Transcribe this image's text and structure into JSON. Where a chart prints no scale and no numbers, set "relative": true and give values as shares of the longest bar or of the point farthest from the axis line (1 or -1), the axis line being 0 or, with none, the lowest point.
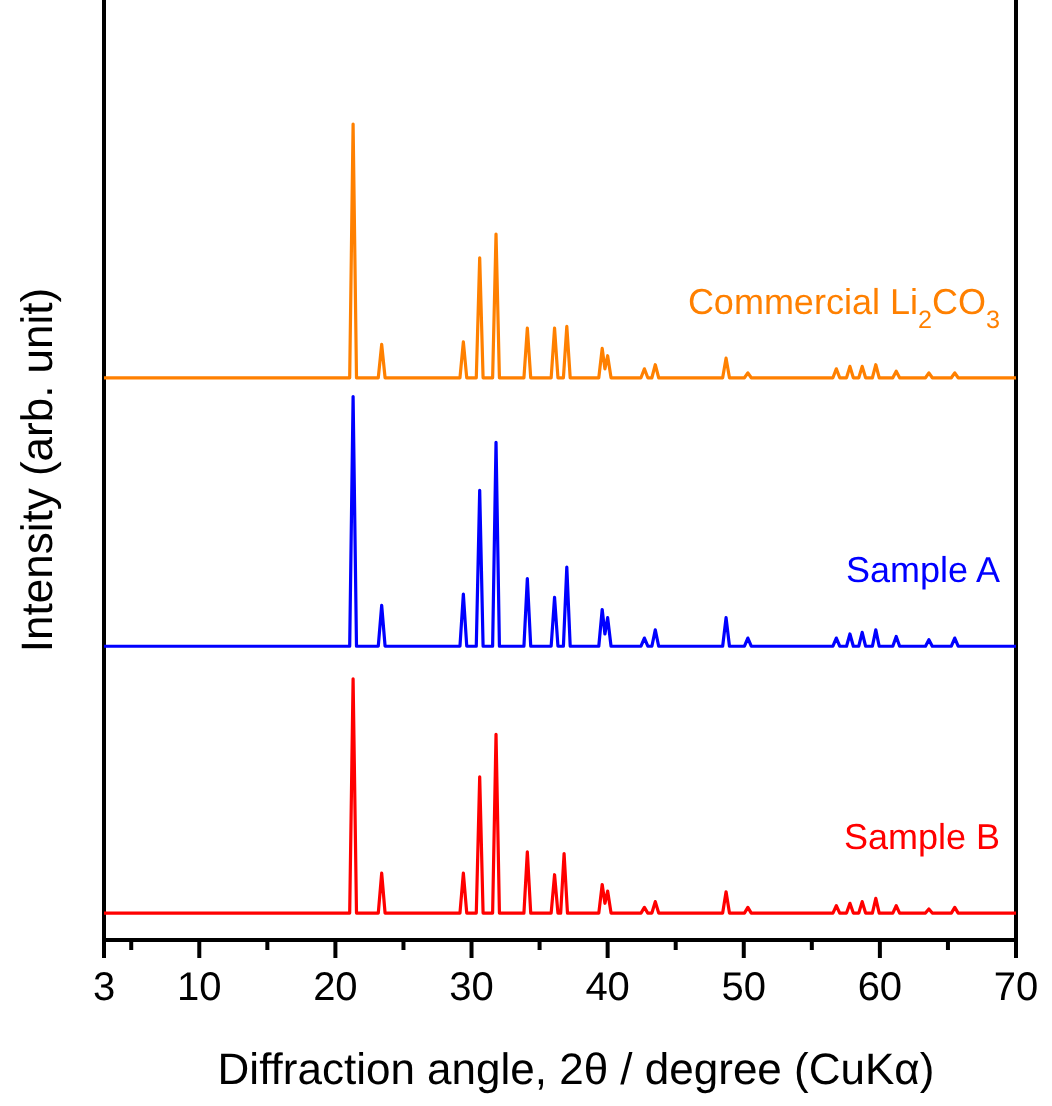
{
  "chart_data": {
    "type": "line",
    "relative": true,
    "xlabel": "Diffraction angle, 2θ / degree (CuKα)",
    "ylabel": "Intensity (arb. unit)",
    "xlim": [
      3,
      70
    ],
    "xticks": [
      3,
      {
        "value": 5,
        "label": null
      },
      10,
      {
        "value": 15,
        "label": null
      },
      20,
      {
        "value": 25,
        "label": null
      },
      30,
      {
        "value": 35,
        "label": null
      },
      40,
      {
        "value": 45,
        "label": null
      },
      50,
      {
        "value": 55,
        "label": null
      },
      60,
      {
        "value": 65,
        "label": null
      },
      70
    ],
    "tick_labels": "x",
    "marker": "none",
    "line_style": "solid",
    "series": [
      {
        "name": "Commercial Li$_{2}$CO$_{3}$",
        "color": "#ff8000",
        "x": [
          3,
          21.05,
          21.3,
          21.55,
          23.15,
          23.4,
          23.65,
          29.15,
          29.4,
          29.65,
          30.35,
          30.6,
          30.85,
          31.55,
          31.8,
          32.05,
          33.85,
          34.1,
          34.35,
          35.85,
          36.1,
          36.35,
          36.75,
          37.0,
          37.25,
          39.35,
          39.6,
          39.8,
          40.0,
          40.25,
          42.45,
          42.7,
          42.95,
          43.25,
          43.5,
          43.75,
          48.45,
          48.7,
          48.95,
          50.05,
          50.3,
          50.55,
          56.55,
          56.8,
          57.05,
          57.55,
          57.8,
          58.05,
          58.45,
          58.7,
          58.95,
          59.45,
          59.7,
          59.95,
          60.95,
          61.2,
          61.45,
          63.35,
          63.6,
          63.85,
          65.25,
          65.5,
          65.75,
          70
        ],
        "values": [
          0.689,
          0.689,
          1.0,
          0.689,
          0.689,
          0.73,
          0.689,
          0.689,
          0.733,
          0.689,
          0.689,
          0.836,
          0.689,
          0.689,
          0.865,
          0.689,
          0.689,
          0.75,
          0.689,
          0.689,
          0.75,
          0.689,
          0.689,
          0.752,
          0.689,
          0.689,
          0.725,
          0.7,
          0.716,
          0.689,
          0.689,
          0.7,
          0.689,
          0.689,
          0.705,
          0.689,
          0.689,
          0.713,
          0.689,
          0.689,
          0.695,
          0.689,
          0.689,
          0.7,
          0.689,
          0.689,
          0.703,
          0.689,
          0.689,
          0.703,
          0.689,
          0.689,
          0.705,
          0.689,
          0.689,
          0.697,
          0.689,
          0.689,
          0.695,
          0.689,
          0.689,
          0.695,
          0.689,
          0.689
        ]
      },
      {
        "name": "Sample A",
        "color": "#0000ff",
        "x": [
          3,
          21.05,
          21.3,
          21.55,
          23.15,
          23.4,
          23.65,
          29.15,
          29.4,
          29.65,
          30.35,
          30.6,
          30.85,
          31.55,
          31.8,
          32.05,
          33.85,
          34.1,
          34.35,
          35.85,
          36.1,
          36.35,
          36.75,
          37.0,
          37.25,
          39.35,
          39.6,
          39.8,
          40.0,
          40.25,
          42.45,
          42.7,
          42.95,
          43.25,
          43.5,
          43.75,
          48.45,
          48.7,
          48.95,
          50.05,
          50.3,
          50.55,
          56.55,
          56.8,
          57.05,
          57.55,
          57.8,
          58.05,
          58.45,
          58.7,
          58.95,
          59.45,
          59.7,
          59.95,
          60.95,
          61.2,
          61.45,
          63.35,
          63.6,
          63.85,
          65.25,
          65.5,
          65.75,
          70
        ],
        "values": [
          0.36,
          0.36,
          0.666,
          0.36,
          0.36,
          0.41,
          0.36,
          0.36,
          0.424,
          0.36,
          0.36,
          0.551,
          0.36,
          0.36,
          0.61,
          0.36,
          0.36,
          0.443,
          0.36,
          0.36,
          0.42,
          0.36,
          0.36,
          0.457,
          0.36,
          0.36,
          0.405,
          0.375,
          0.395,
          0.36,
          0.36,
          0.37,
          0.36,
          0.36,
          0.38,
          0.36,
          0.36,
          0.395,
          0.36,
          0.36,
          0.37,
          0.36,
          0.36,
          0.37,
          0.36,
          0.36,
          0.375,
          0.36,
          0.36,
          0.377,
          0.36,
          0.36,
          0.38,
          0.36,
          0.36,
          0.372,
          0.36,
          0.36,
          0.368,
          0.36,
          0.36,
          0.37,
          0.36,
          0.36
        ]
      },
      {
        "name": "Sample B",
        "color": "#ff0000",
        "x": [
          3,
          21.05,
          21.3,
          21.55,
          23.15,
          23.4,
          23.65,
          29.15,
          29.4,
          29.65,
          30.35,
          30.6,
          30.85,
          31.55,
          31.8,
          32.05,
          33.85,
          34.1,
          34.35,
          35.85,
          36.1,
          36.35,
          36.55,
          36.8,
          37.05,
          39.35,
          39.6,
          39.8,
          40.0,
          40.25,
          42.45,
          42.7,
          42.95,
          43.25,
          43.5,
          43.75,
          48.45,
          48.7,
          48.95,
          50.05,
          50.3,
          50.55,
          56.55,
          56.8,
          57.05,
          57.55,
          57.8,
          58.05,
          58.45,
          58.7,
          58.95,
          59.45,
          59.7,
          59.95,
          60.95,
          61.2,
          61.45,
          63.35,
          63.6,
          63.85,
          65.25,
          65.5,
          65.75,
          70
        ],
        "values": [
          0.033,
          0.033,
          0.32,
          0.033,
          0.033,
          0.082,
          0.033,
          0.033,
          0.082,
          0.033,
          0.033,
          0.2,
          0.033,
          0.033,
          0.252,
          0.033,
          0.033,
          0.108,
          0.033,
          0.033,
          0.08,
          0.033,
          0.033,
          0.106,
          0.033,
          0.033,
          0.068,
          0.045,
          0.06,
          0.033,
          0.033,
          0.04,
          0.033,
          0.033,
          0.047,
          0.033,
          0.033,
          0.059,
          0.033,
          0.033,
          0.04,
          0.033,
          0.033,
          0.042,
          0.033,
          0.033,
          0.045,
          0.033,
          0.033,
          0.047,
          0.033,
          0.033,
          0.051,
          0.033,
          0.033,
          0.042,
          0.033,
          0.033,
          0.038,
          0.033,
          0.033,
          0.04,
          0.033,
          0.033
        ]
      }
    ]
  }
}
